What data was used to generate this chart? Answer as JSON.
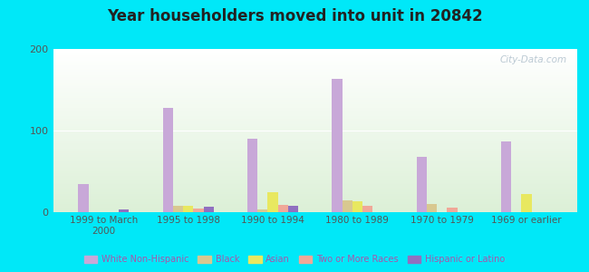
{
  "title": "Year householders moved into unit in 20842",
  "categories": [
    "1999 to March\n2000",
    "1995 to 1998",
    "1990 to 1994",
    "1980 to 1989",
    "1970 to 1979",
    "1969 or earlier"
  ],
  "white_nh": [
    35,
    128,
    90,
    163,
    68,
    87
  ],
  "black": [
    0,
    8,
    3,
    15,
    10,
    0
  ],
  "asian": [
    0,
    8,
    25,
    13,
    0,
    22
  ],
  "two_or_more": [
    0,
    5,
    9,
    8,
    6,
    0
  ],
  "hispanic": [
    3,
    7,
    8,
    0,
    0,
    0
  ],
  "colors": {
    "White Non-Hispanic": "#c8a8d8",
    "Black": "#d8c890",
    "Asian": "#e8e860",
    "Two or More Races": "#f0a898",
    "Hispanic or Latino": "#9070c0"
  },
  "ylim": [
    0,
    200
  ],
  "yticks": [
    0,
    100,
    200
  ],
  "background_outer": "#00e8f8",
  "watermark": "City-Data.com",
  "legend_labels": [
    "White Non-Hispanic",
    "Black",
    "Asian",
    "Two or More Races",
    "Hispanic or Latino"
  ]
}
